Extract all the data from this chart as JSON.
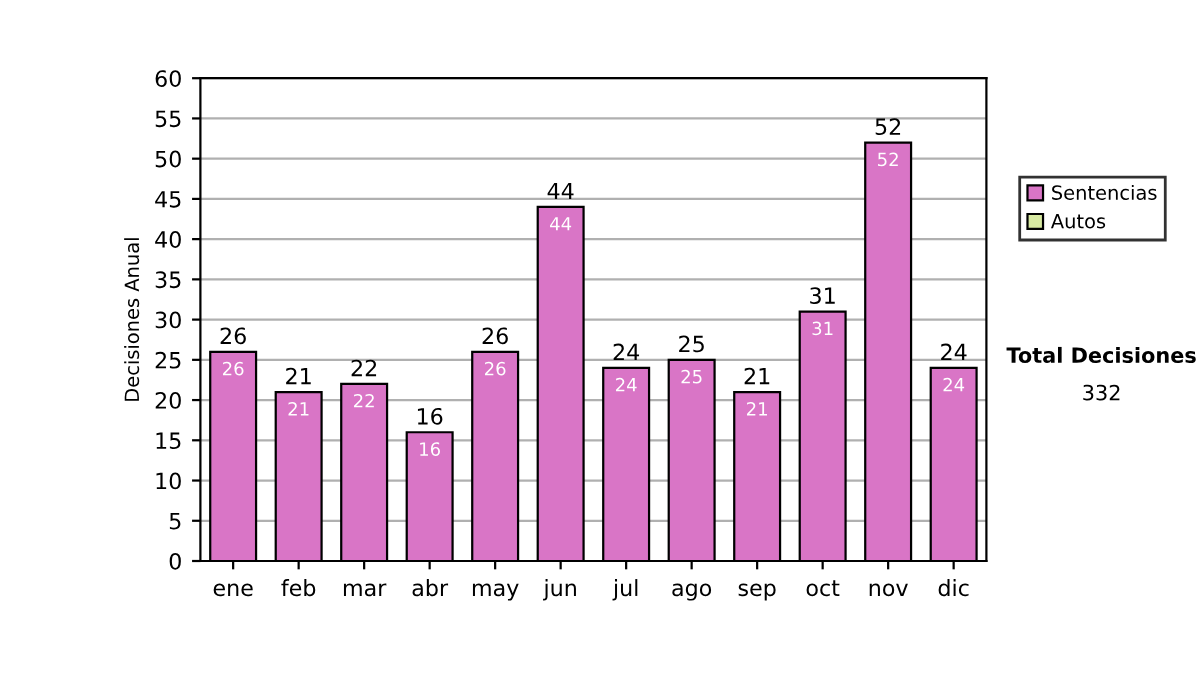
{
  "chart_data": {
    "type": "bar",
    "stacked": true,
    "ylabel": "Decisiones Anual",
    "categories": [
      "ene",
      "feb",
      "mar",
      "abr",
      "may",
      "jun",
      "jul",
      "ago",
      "sep",
      "oct",
      "nov",
      "dic"
    ],
    "series": [
      {
        "name": "Sentencias",
        "color": "#d975c6",
        "values": [
          26,
          21,
          22,
          16,
          26,
          44,
          24,
          25,
          21,
          31,
          52,
          24
        ],
        "value_labels": [
          "26",
          "21",
          "22",
          "16",
          "26",
          "44",
          "24",
          "25",
          "21",
          "31",
          "52",
          "24"
        ]
      },
      {
        "name": "Autos",
        "color": "#d8eaa2",
        "values": [
          null,
          null,
          null,
          null,
          null,
          null,
          null,
          null,
          null,
          null,
          null,
          null
        ]
      }
    ],
    "totals": [
      "26",
      "21",
      "22",
      "16",
      "26",
      "44",
      "24",
      "25",
      "21",
      "31",
      "52",
      "24"
    ],
    "ylim": [
      0,
      60
    ],
    "yticks": [
      0,
      5,
      10,
      15,
      20,
      25,
      30,
      35,
      40,
      45,
      50,
      55,
      60
    ],
    "grid": "y",
    "legend": "right",
    "annotations": [
      "Total Decisiones",
      "332"
    ]
  }
}
